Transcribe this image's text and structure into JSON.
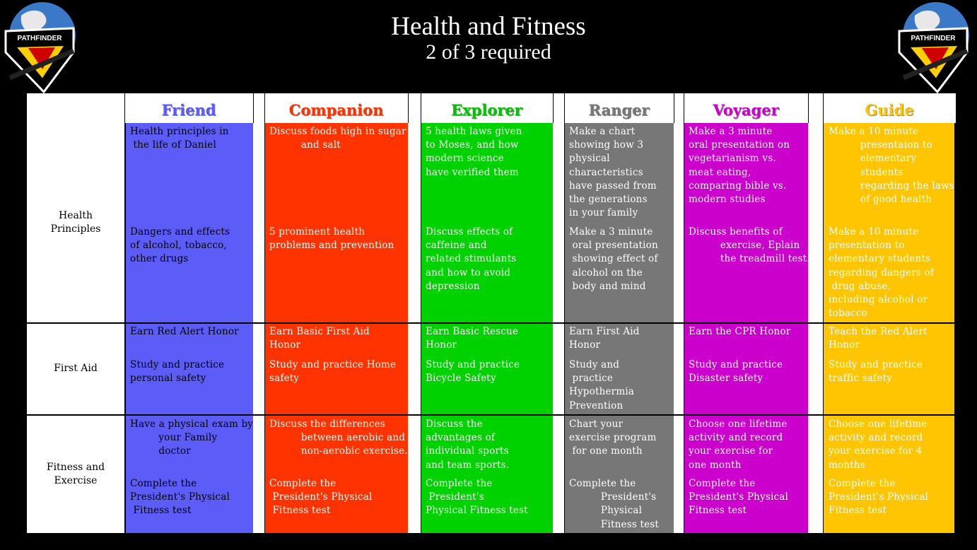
{
  "header": {
    "title": "Health and Fitness",
    "subtitle": "2 of 3 required"
  },
  "logo": {
    "text": "PATHFINDER",
    "icon": "pathfinder-shield-globe-icon"
  },
  "row_labels": {
    "health": "Health\nPrinciples",
    "firstaid": "First Aid",
    "fitness": "Fitness and\nExercise"
  },
  "colors": {
    "friend": "#5c5cf8",
    "companion": "#ff3300",
    "explorer": "#00d200",
    "ranger": "#777777",
    "voyager": "#cc00cc",
    "guide": "#ffc500"
  },
  "columns": [
    {
      "name": "Friend",
      "cells": [
        "Health principles in\n the life of Daniel",
        "Dangers and effects\nof alcohol, tobacco,\nother drugs",
        "Earn Red Alert Honor",
        "Study and practice\npersonal safety",
        "Have a physical exam by\n         your Family\n         doctor",
        "Complete the\nPresident's Physical\n Fitness test"
      ]
    },
    {
      "name": "Companion",
      "cells": [
        "Discuss foods high in sugar\n          and salt",
        "5 prominent health\nproblems and prevention",
        "Earn Basic First Aid\nHonor",
        "Study and practice Home\nsafety",
        "Discuss the differences\n          between aerobic and\n          non-aerobic exercise.",
        "Complete the\n President's Physical\n Fitness test"
      ]
    },
    {
      "name": "Explorer",
      "cells": [
        "5 health laws given\nto Moses, and how\nmodern science\nhave verified them",
        "Discuss effects of\ncaffeine and\nrelated stimulants\nand how to avoid\ndepression",
        "Earn Basic Rescue\nHonor",
        "Study and practice\nBicycle Safety",
        "Discuss the\nadvantages of\nindividual sports\nand team sports.",
        "Complete the\n President's\nPhysical Fitness test"
      ]
    },
    {
      "name": "Ranger",
      "cells": [
        "Make a chart\nshowing how 3\nphysical\ncharacteristics\nhave passed from\nthe generations\nin your family",
        "Make a 3 minute\n oral presentation\n showing effect of\n alcohol on the\n body and mind",
        "Earn First Aid\nHonor",
        "Study and\n practice\nHypothermia\nPrevention",
        "Chart your\nexercise program\n for one month",
        "Complete the\n          President's\n          Physical\n          Fitness test"
      ]
    },
    {
      "name": "Voyager",
      "cells": [
        "Make a 3 minute\noral presentation on\nvegetarianism vs.\nmeat eating,\ncomparing bible vs.\nmodern studies",
        "Discuss benefits of\n          exercise, Eplain\n          the treadmill test.",
        "Earn the CPR Honor",
        "Study and practice\nDisaster safety",
        "Choose one lifetime\nactivity and record\nyour exercise for\none month",
        "Complete the\nPresident's Physical\nFitness test"
      ]
    },
    {
      "name": "Guide",
      "cells": [
        "Make a 10 minute\n          presentaion to\n          elementary\n          students\n          regarding the laws\n          of good health",
        "Make a 10 minute\npresentation to\nelementary students\nregarding dangers of\n drug abuse,\nincluding alcohol or\ntobacco",
        "Teach the Red Alert\nHonor",
        "Study and practice\ntraffic safety",
        "Choose one lifetime\nactivity and record\nyour exercise for 4\nmonths",
        "Complete the\nPresident's Physical\nFitness test"
      ]
    }
  ]
}
